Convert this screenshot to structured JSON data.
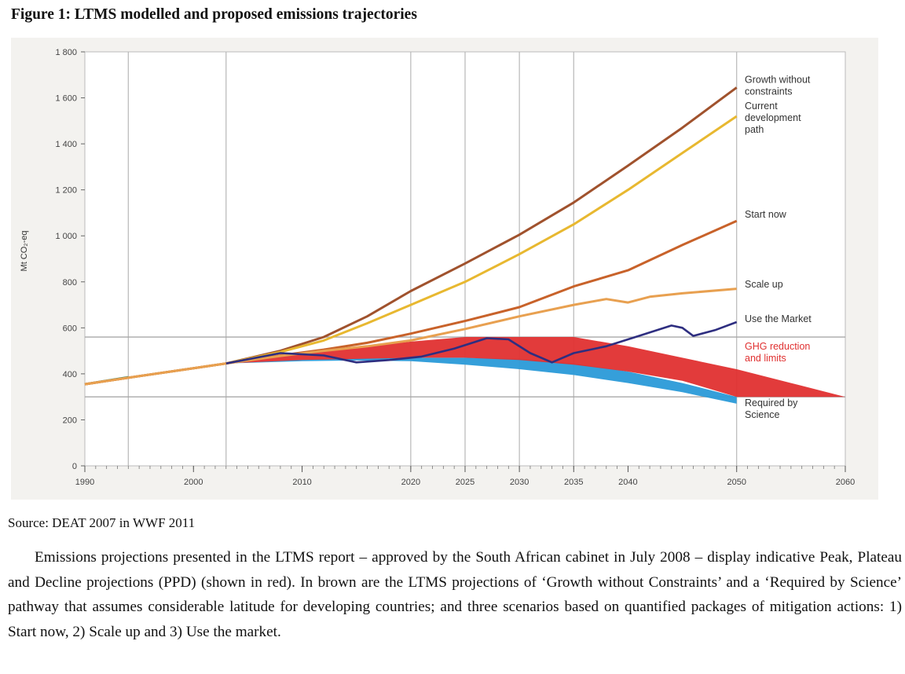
{
  "figure_title": "Figure 1: LTMS modelled and proposed emissions trajectories",
  "source": "Source: DEAT 2007 in WWF 2011",
  "paragraph": "Emissions projections presented in the LTMS report – approved by the South African cabinet in July 2008 – display indicative Peak, Plateau and Decline projections (PPD) (shown in red). In brown are the LTMS projections of ‘Growth without Constraints’ and a ‘Required by Science’ pathway that assumes considerable latitude for developing countries; and three scenarios based on quantified packages of mitigation actions: 1) Start now, 2) Scale up and 3) Use the market.",
  "chart_data": {
    "type": "line",
    "title": "",
    "ylabel": "Mt CO₂-eq",
    "xlabel": "",
    "xlim": [
      1990,
      2060
    ],
    "ylim": [
      0,
      1800
    ],
    "x_ticks": [
      1990,
      2000,
      2010,
      2020,
      2025,
      2030,
      2035,
      2040,
      2050,
      2060
    ],
    "y_ticks": [
      0,
      200,
      400,
      600,
      800,
      1000,
      1200,
      1400,
      1600,
      1800
    ],
    "y_tick_labels": [
      "0",
      "200",
      "400",
      "600",
      "800",
      "1 000",
      "1 200",
      "1 400",
      "1 600",
      "1 800"
    ],
    "grid": true,
    "vertical_gridlines": [
      1994,
      2003,
      2020,
      2025,
      2030,
      2035,
      2050
    ],
    "horizontal_reference_lines": [
      560,
      300
    ],
    "series": [
      {
        "name": "Growth without constraints",
        "label_lines": [
          "Growth without",
          "constraints"
        ],
        "color": "#a0522d",
        "x": [
          1990,
          1995,
          2003,
          2008,
          2012,
          2016,
          2020,
          2025,
          2030,
          2035,
          2040,
          2045,
          2050
        ],
        "y": [
          355,
          390,
          445,
          500,
          560,
          650,
          760,
          880,
          1005,
          1145,
          1305,
          1470,
          1645
        ]
      },
      {
        "name": "Current development path",
        "label_lines": [
          "Current",
          "development",
          "path"
        ],
        "color": "#e8b830",
        "x": [
          1990,
          1995,
          2003,
          2008,
          2012,
          2016,
          2020,
          2025,
          2030,
          2035,
          2040,
          2045,
          2050
        ],
        "y": [
          355,
          390,
          445,
          495,
          545,
          620,
          700,
          800,
          920,
          1050,
          1200,
          1360,
          1520
        ]
      },
      {
        "name": "Start now",
        "label_lines": [
          "Start now"
        ],
        "color": "#c8622a",
        "x": [
          1990,
          1995,
          2003,
          2008,
          2012,
          2016,
          2020,
          2025,
          2030,
          2035,
          2040,
          2045,
          2050
        ],
        "y": [
          355,
          390,
          445,
          480,
          505,
          535,
          575,
          630,
          690,
          780,
          850,
          960,
          1065
        ]
      },
      {
        "name": "Scale up",
        "label_lines": [
          "Scale up"
        ],
        "color": "#e8a050",
        "x": [
          1990,
          1995,
          2003,
          2008,
          2012,
          2016,
          2020,
          2025,
          2030,
          2035,
          2038,
          2040,
          2042,
          2045,
          2050
        ],
        "y": [
          355,
          390,
          445,
          478,
          500,
          520,
          545,
          595,
          650,
          700,
          725,
          710,
          735,
          750,
          770
        ]
      },
      {
        "name": "Use the Market",
        "label_lines": [
          "Use the Market"
        ],
        "color": "#2e2e80",
        "x": [
          2003,
          2008,
          2012,
          2015,
          2018,
          2021,
          2024,
          2027,
          2029,
          2031,
          2033,
          2035,
          2038,
          2041,
          2044,
          2045,
          2046,
          2048,
          2050
        ],
        "y": [
          445,
          490,
          480,
          450,
          460,
          475,
          510,
          555,
          550,
          490,
          450,
          490,
          520,
          565,
          610,
          600,
          565,
          590,
          625
        ]
      },
      {
        "name": "GHG reduction and limits",
        "label_lines": [
          "GHG reduction",
          "and limits"
        ],
        "color": "#e03030",
        "band": true,
        "x": [
          2003,
          2010,
          2020,
          2025,
          2030,
          2035,
          2040,
          2045,
          2050,
          2055,
          2060
        ],
        "upper": [
          445,
          490,
          540,
          560,
          560,
          560,
          520,
          470,
          420,
          360,
          300
        ],
        "lower": [
          445,
          460,
          470,
          470,
          460,
          440,
          410,
          370,
          300,
          300,
          300
        ]
      },
      {
        "name": "Required by Science",
        "label_lines": [
          "Required by",
          "Science"
        ],
        "color": "#2a9ad8",
        "band": true,
        "x": [
          2003,
          2010,
          2015,
          2020,
          2025,
          2030,
          2035,
          2040,
          2045,
          2050
        ],
        "upper": [
          445,
          462,
          468,
          470,
          470,
          465,
          445,
          410,
          360,
          300
        ],
        "lower": [
          445,
          455,
          458,
          455,
          440,
          420,
          395,
          360,
          320,
          270
        ]
      }
    ]
  }
}
